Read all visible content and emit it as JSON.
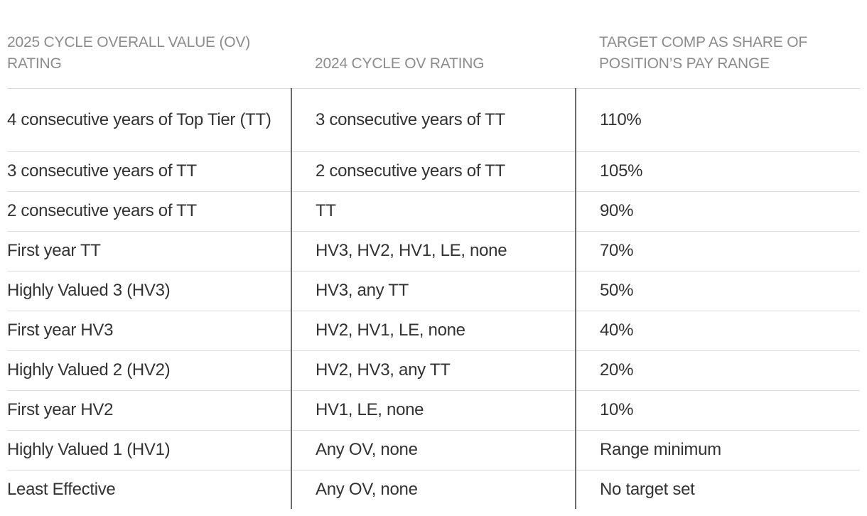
{
  "headers": {
    "col1": "2025 cycle overall value (OV) rating",
    "col2": "2024 cycle OV rating",
    "col3": "Target comp as share of position’s pay range"
  },
  "rows": [
    {
      "ov2025": "4 consecutive years of Top Tier (TT)",
      "ov2024": "3 consecutive years of TT",
      "target": "110%"
    },
    {
      "ov2025": "3 consecutive years of TT",
      "ov2024": "2 consecutive years of TT",
      "target": "105%"
    },
    {
      "ov2025": "2 consecutive years of TT",
      "ov2024": "TT",
      "target": "90%"
    },
    {
      "ov2025": "First year TT",
      "ov2024": "HV3, HV2, HV1, LE, none",
      "target": "70%"
    },
    {
      "ov2025": "Highly Valued 3 (HV3)",
      "ov2024": "HV3, any TT",
      "target": "50%"
    },
    {
      "ov2025": "First year HV3",
      "ov2024": "HV2, HV1, LE, none",
      "target": "40%"
    },
    {
      "ov2025": "Highly Valued 2 (HV2)",
      "ov2024": "HV2, HV3, any TT",
      "target": "20%"
    },
    {
      "ov2025": "First year HV2",
      "ov2024": "HV1, LE, none",
      "target": "10%"
    },
    {
      "ov2025": "Highly Valued 1 (HV1)",
      "ov2024": "Any OV, none",
      "target": "Range minimum"
    },
    {
      "ov2025": "Least Effective",
      "ov2024": "Any OV, none",
      "target": "No target set"
    }
  ]
}
